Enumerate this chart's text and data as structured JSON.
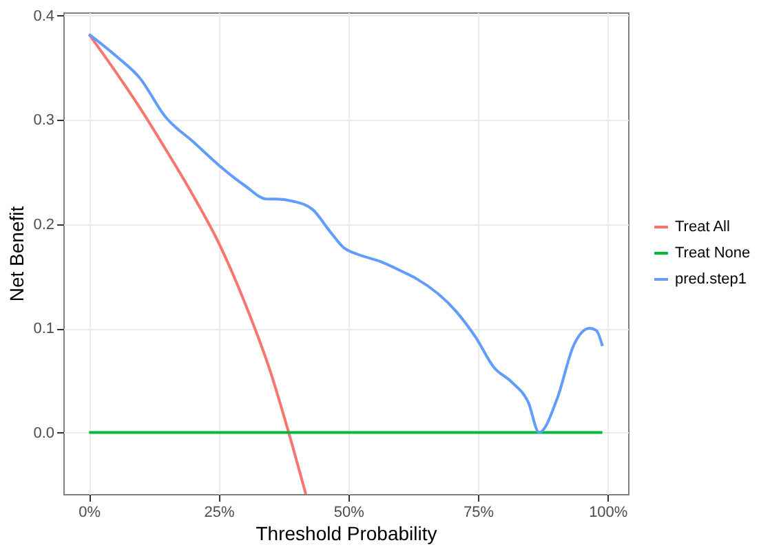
{
  "chart_data": {
    "type": "line",
    "xlabel": "Threshold Probability",
    "ylabel": "Net Benefit",
    "xlim": [
      -4.95,
      103.95
    ],
    "ylim": [
      -0.059,
      0.403
    ],
    "xticks": [
      {
        "value": 0,
        "label": "0%"
      },
      {
        "value": 25,
        "label": "25%"
      },
      {
        "value": 50,
        "label": "50%"
      },
      {
        "value": 75,
        "label": "75%"
      },
      {
        "value": 100,
        "label": "100%"
      }
    ],
    "yticks": [
      {
        "value": 0,
        "label": "0.0"
      },
      {
        "value": 0.1,
        "label": "0.1"
      },
      {
        "value": 0.2,
        "label": "0.2"
      },
      {
        "value": 0.3,
        "label": "0.3"
      },
      {
        "value": 0.4,
        "label": "0.4"
      }
    ],
    "grid": true,
    "legend": "right",
    "series": [
      {
        "name": "Treat All",
        "color": "#f8766d",
        "x": [
          0,
          5,
          10,
          14,
          20,
          25,
          30,
          35,
          38.5,
          41.8
        ],
        "values": [
          0.382,
          0.347,
          0.31,
          0.278,
          0.228,
          0.182,
          0.125,
          0.058,
          0,
          -0.059
        ]
      },
      {
        "name": "Treat None",
        "color": "#00ba38",
        "x": [
          0,
          99
        ],
        "values": [
          0,
          0
        ]
      },
      {
        "name": "pred.step1",
        "color": "#619cff",
        "x": [
          0,
          5.5,
          9.8,
          14.7,
          20.3,
          25.6,
          30,
          34.3,
          36.1,
          39.2,
          43.1,
          46.6,
          49.2,
          51.8,
          56.2,
          60.6,
          63,
          71,
          74.6,
          78,
          81.6,
          84.7,
          86.8,
          90.3,
          93.4,
          96.5,
          97.8,
          99
        ],
        "values": [
          0.382,
          0.36,
          0.34,
          0.303,
          0.278,
          0.254,
          0.237,
          0.224,
          0.224,
          0.222,
          0.214,
          0.192,
          0.177,
          0.171,
          0.164,
          0.154,
          0.148,
          0.115,
          0.091,
          0.063,
          0.048,
          0.029,
          0,
          0.033,
          0.083,
          0.1,
          0.098,
          0.083
        ]
      }
    ]
  }
}
